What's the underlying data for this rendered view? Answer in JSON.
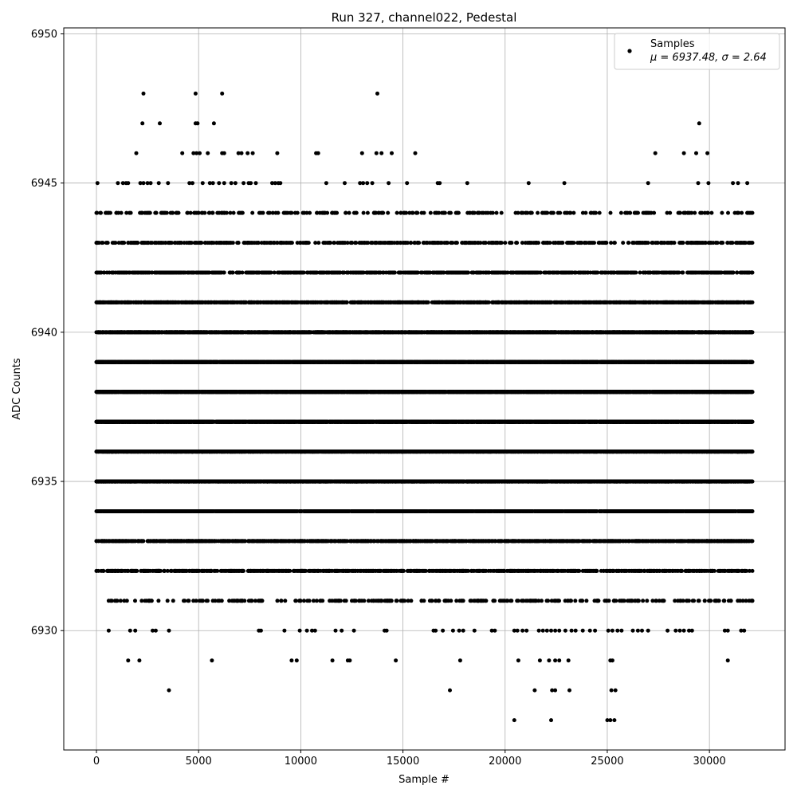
{
  "chart_data": {
    "type": "scatter",
    "title": "Run 327, channel022, Pedestal",
    "xlabel": "Sample #",
    "ylabel": "ADC Counts",
    "xlim": [
      -1600,
      33700
    ],
    "ylim": [
      6926,
      6950.2
    ],
    "xticks": [
      0,
      5000,
      10000,
      15000,
      20000,
      25000,
      30000
    ],
    "xtick_labels": [
      "0",
      "5000",
      "10000",
      "15000",
      "20000",
      "25000",
      "30000"
    ],
    "yticks": [
      6930,
      6935,
      6940,
      6945,
      6950
    ],
    "ytick_labels": [
      "6930",
      "6935",
      "6940",
      "6945",
      "6950"
    ],
    "grid": true,
    "legend_position": "top-right",
    "marker_color": "#000000",
    "series": [
      {
        "name": "Samples",
        "stats_label": "μ = 6937.48, σ = 2.64",
        "n_samples": 32100,
        "levels": [
          {
            "y": 6948,
            "x": [
              2300,
              4850,
              6150,
              13750
            ]
          },
          {
            "y": 6947,
            "x": [
              2250,
              3100,
              4850,
              4950,
              5750,
              29500
            ]
          },
          {
            "y": 6946,
            "x": [
              1950,
              4200,
              4750,
              4900,
              5050,
              5450,
              6150,
              6250,
              6950,
              7100,
              7400,
              7650,
              8850,
              10750,
              10850,
              13000,
              13700,
              13950,
              14450,
              15600,
              27350,
              28750,
              29350,
              29900
            ]
          },
          {
            "y": 6945,
            "x": [
              50,
              1050,
              1300,
              1450,
              1550,
              2150,
              2300,
              2500,
              2650,
              3050,
              3500,
              4550,
              4700,
              5200,
              5550,
              5700,
              6000,
              6250,
              6600,
              6800,
              7200,
              7450,
              7550,
              7800,
              8600,
              8750,
              8900,
              9000,
              11250,
              12150,
              12900,
              13050,
              13250,
              13500,
              14300,
              15200,
              16700,
              16800,
              18150,
              21150,
              22900,
              27000,
              29450,
              29950,
              31150,
              31400,
              31850
            ]
          },
          {
            "y": 6944,
            "x_start": 0,
            "x_end": 32100,
            "count": 300,
            "gaps": [
              [
                9100,
                10200
              ],
              [
                22400,
                25800
              ]
            ]
          },
          {
            "y": 6943,
            "x_start": 0,
            "x_end": 32100,
            "count": 520,
            "gaps": [
              [
                25200,
                25800
              ]
            ]
          },
          {
            "y": 6942,
            "x_start": 0,
            "x_end": 32100,
            "count": 850
          },
          {
            "y": 6941,
            "x_start": 0,
            "x_end": 32100,
            "count": 1400
          },
          {
            "y": 6940,
            "x_start": 0,
            "x_end": 32100,
            "count": 2200
          },
          {
            "y": 6939,
            "x_start": 0,
            "x_end": 32100,
            "count": 3400
          },
          {
            "y": 6938,
            "x_start": 0,
            "x_end": 32100,
            "count": 4300
          },
          {
            "y": 6937,
            "x_start": 0,
            "x_end": 32100,
            "count": 4600
          },
          {
            "y": 6936,
            "x_start": 0,
            "x_end": 32100,
            "count": 4300
          },
          {
            "y": 6935,
            "x_start": 0,
            "x_end": 32100,
            "count": 3400
          },
          {
            "y": 6934,
            "x_start": 0,
            "x_end": 32100,
            "count": 2200
          },
          {
            "y": 6933,
            "x_start": 0,
            "x_end": 32100,
            "count": 1400
          },
          {
            "y": 6932,
            "x_start": 0,
            "x_end": 32100,
            "count": 850
          },
          {
            "y": 6931,
            "x_start": 600,
            "x_end": 32100,
            "count": 300
          },
          {
            "y": 6930,
            "x": [
              600,
              1650,
              1900,
              2750,
              2900,
              3550,
              7950,
              8050,
              9200,
              9950,
              10300,
              10550,
              10700,
              11700,
              12000,
              12600,
              14100,
              14200,
              16500,
              16600,
              16950,
              17450,
              17750,
              17950,
              18500,
              19350,
              19500,
              20450,
              20600,
              20850,
              21050,
              21650,
              21850,
              22050,
              22250,
              22450,
              22650,
              22950,
              23250,
              23450,
              23800,
              24150,
              24400,
              25050,
              25250,
              25500,
              25700,
              26250,
              26500,
              26700,
              27000,
              27950,
              28350,
              28550,
              28750,
              29000,
              29150,
              30750,
              30900,
              31550,
              31700
            ]
          },
          {
            "y": 6929,
            "x": [
              1550,
              2100,
              5650,
              9550,
              9800,
              11550,
              12300,
              12400,
              14650,
              17800,
              20650,
              21700,
              22150,
              22450,
              22650,
              23100,
              25150,
              25250,
              30900
            ]
          },
          {
            "y": 6928,
            "x": [
              3550,
              17300,
              21450,
              22300,
              22450,
              23150,
              25200,
              25400
            ]
          },
          {
            "y": 6927,
            "x": [
              20450,
              22250,
              25000,
              25150,
              25350
            ]
          }
        ]
      }
    ]
  }
}
